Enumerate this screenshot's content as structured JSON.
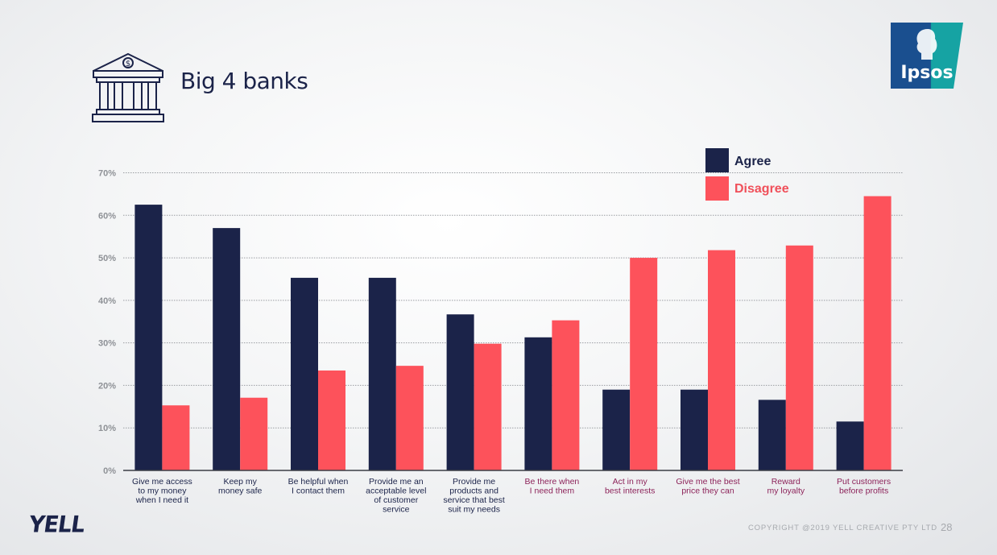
{
  "slide": {
    "title": "Big 4 banks",
    "logo_text": "Ipsos",
    "brand": "YELL",
    "copyright": "COPYRIGHT @2019 YELL CREATIVE PTY LTD",
    "page_number": "28"
  },
  "colors": {
    "agree": "#1b2349",
    "disagree": "#fd525b",
    "highlight_label": "#8c2259",
    "axis_label": "#1b2349",
    "tick": "#8e9196"
  },
  "chart_data": {
    "type": "bar",
    "title": "",
    "xlabel": "",
    "ylabel": "",
    "ylim": [
      0,
      70
    ],
    "y_ticks": [
      0,
      10,
      20,
      30,
      40,
      50,
      60,
      70
    ],
    "y_tick_labels": [
      "0%",
      "10%",
      "20%",
      "30%",
      "40%",
      "50%",
      "60%",
      "70%"
    ],
    "grid": true,
    "legend_position": "top-right",
    "categories": [
      "Give me access to my money when I need it",
      "Keep my money safe",
      "Be helpful when I contact them",
      "Provide me an acceptable level of customer service",
      "Provide me products and service that best suit my needs",
      "Be there when I need them",
      "Act in my best interests",
      "Give me the best price they can",
      "Reward my loyalty",
      "Put customers before profits"
    ],
    "category_label_lines": [
      [
        "Give me access",
        "to my money",
        "when I need it"
      ],
      [
        "Keep my",
        "money safe"
      ],
      [
        "Be helpful when",
        "I contact them"
      ],
      [
        "Provide me an",
        "acceptable level",
        "of customer",
        "service"
      ],
      [
        "Provide me",
        "products and",
        "service that best",
        "suit my needs"
      ],
      [
        "Be there when",
        "I need them"
      ],
      [
        "Act in my",
        "best interests"
      ],
      [
        "Give me the best",
        "price they can"
      ],
      [
        "Reward",
        "my loyalty"
      ],
      [
        "Put customers",
        "before profits"
      ]
    ],
    "highlighted_categories_from_index": 5,
    "series": [
      {
        "name": "Agree",
        "values": [
          62.5,
          57,
          45.3,
          45.3,
          36.7,
          31.3,
          19,
          19,
          16.6,
          11.5
        ]
      },
      {
        "name": "Disagree",
        "values": [
          15.3,
          17.1,
          23.5,
          24.6,
          29.8,
          35.3,
          50,
          51.8,
          52.9,
          64.5
        ]
      }
    ]
  }
}
